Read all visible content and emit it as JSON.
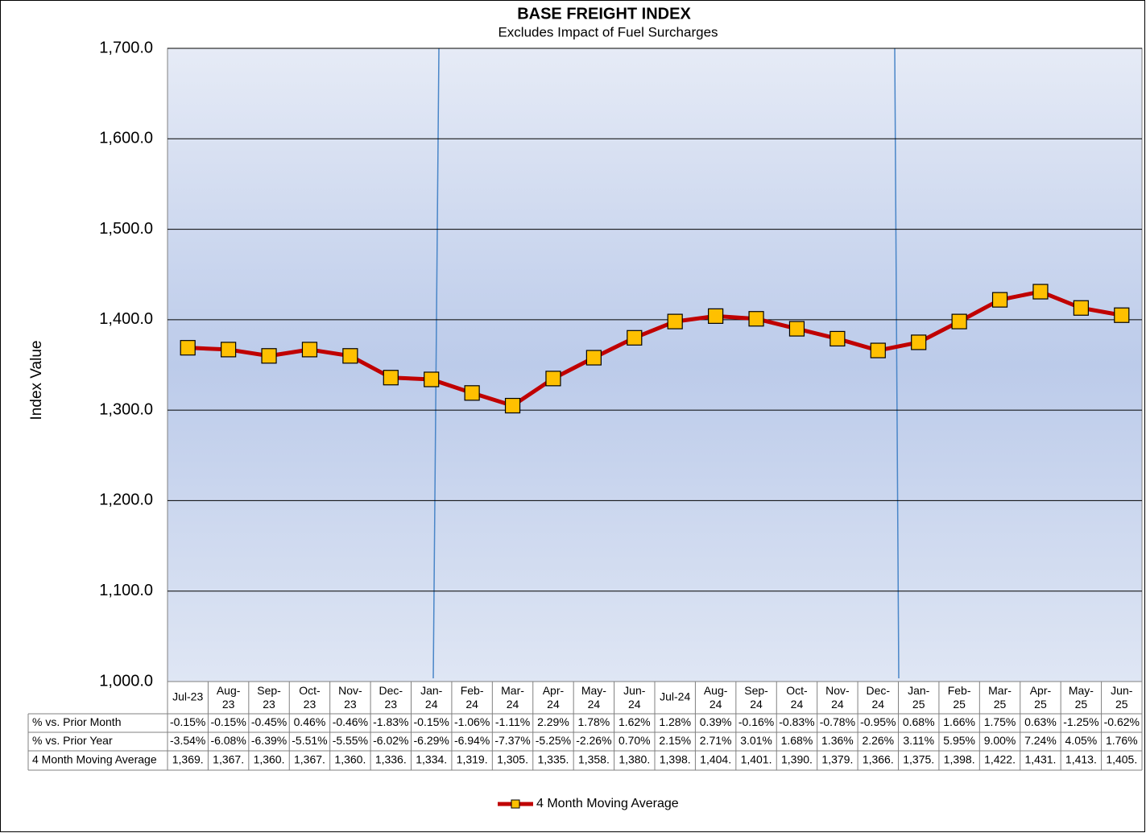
{
  "chart_data": {
    "type": "line",
    "title": "BASE FREIGHT INDEX",
    "subtitle": "Excludes Impact of Fuel Surcharges",
    "y_label": "Index Value",
    "categories": [
      "Jul-23",
      "Aug-23",
      "Sep-23",
      "Oct-23",
      "Nov-23",
      "Dec-23",
      "Jan-24",
      "Feb-24",
      "Mar-24",
      "Apr-24",
      "May-24",
      "Jun-24",
      "Jul-24",
      "Aug-24",
      "Sep-24",
      "Oct-24",
      "Nov-24",
      "Dec-24",
      "Jan-25",
      "Feb-25",
      "Mar-25",
      "Apr-25",
      "May-25",
      "Jun-25"
    ],
    "series": [
      {
        "name": "4 Month Moving Average",
        "color": "#c00000",
        "marker_color": "#ffc000",
        "values": [
          1369,
          1367,
          1360,
          1367,
          1360,
          1336,
          1334,
          1319,
          1305,
          1335,
          1358,
          1380,
          1398,
          1404,
          1401,
          1390,
          1379,
          1366,
          1375,
          1398,
          1422,
          1431,
          1413,
          1405
        ],
        "value_labels": [
          "1,369.",
          "1,367.",
          "1,360.",
          "1,367.",
          "1,360.",
          "1,336.",
          "1,334.",
          "1,319.",
          "1,305.",
          "1,335.",
          "1,358.",
          "1,380.",
          "1,398.",
          "1,404.",
          "1,401.",
          "1,390.",
          "1,379.",
          "1,366.",
          "1,375.",
          "1,398.",
          "1,422.",
          "1,431.",
          "1,413.",
          "1,405."
        ]
      }
    ],
    "ylim": [
      1000,
      1700
    ],
    "yticks": [
      {
        "value": 1000,
        "label": "1,000.0"
      },
      {
        "value": 1100,
        "label": "1,100.0"
      },
      {
        "value": 1200,
        "label": "1,200.0"
      },
      {
        "value": 1300,
        "label": "1,300.0"
      },
      {
        "value": 1400,
        "label": "1,400.0"
      },
      {
        "value": 1500,
        "label": "1,500.0"
      },
      {
        "value": 1600,
        "label": "1,600.0"
      },
      {
        "value": 1700,
        "label": "1,700.0"
      }
    ],
    "grid": true,
    "legend": "bottom",
    "table_rows": [
      {
        "label": "% vs. Prior Month",
        "cells": [
          "-0.15%",
          "-0.15%",
          "-0.45%",
          "0.46%",
          "-0.46%",
          "-1.83%",
          "-0.15%",
          "-1.06%",
          "-1.11%",
          "2.29%",
          "1.78%",
          "1.62%",
          "1.28%",
          "0.39%",
          "-0.16%",
          "-0.83%",
          "-0.78%",
          "-0.95%",
          "0.68%",
          "1.66%",
          "1.75%",
          "0.63%",
          "-1.25%",
          "-0.62%"
        ]
      },
      {
        "label": "% vs. Prior Year",
        "cells": [
          "-3.54%",
          "-6.08%",
          "-6.39%",
          "-5.51%",
          "-5.55%",
          "-6.02%",
          "-6.29%",
          "-6.94%",
          "-7.37%",
          "-5.25%",
          "-2.26%",
          "0.70%",
          "2.15%",
          "2.71%",
          "3.01%",
          "1.68%",
          "1.36%",
          "2.26%",
          "3.11%",
          "5.95%",
          "9.00%",
          "7.24%",
          "4.05%",
          "1.76%"
        ]
      }
    ]
  }
}
